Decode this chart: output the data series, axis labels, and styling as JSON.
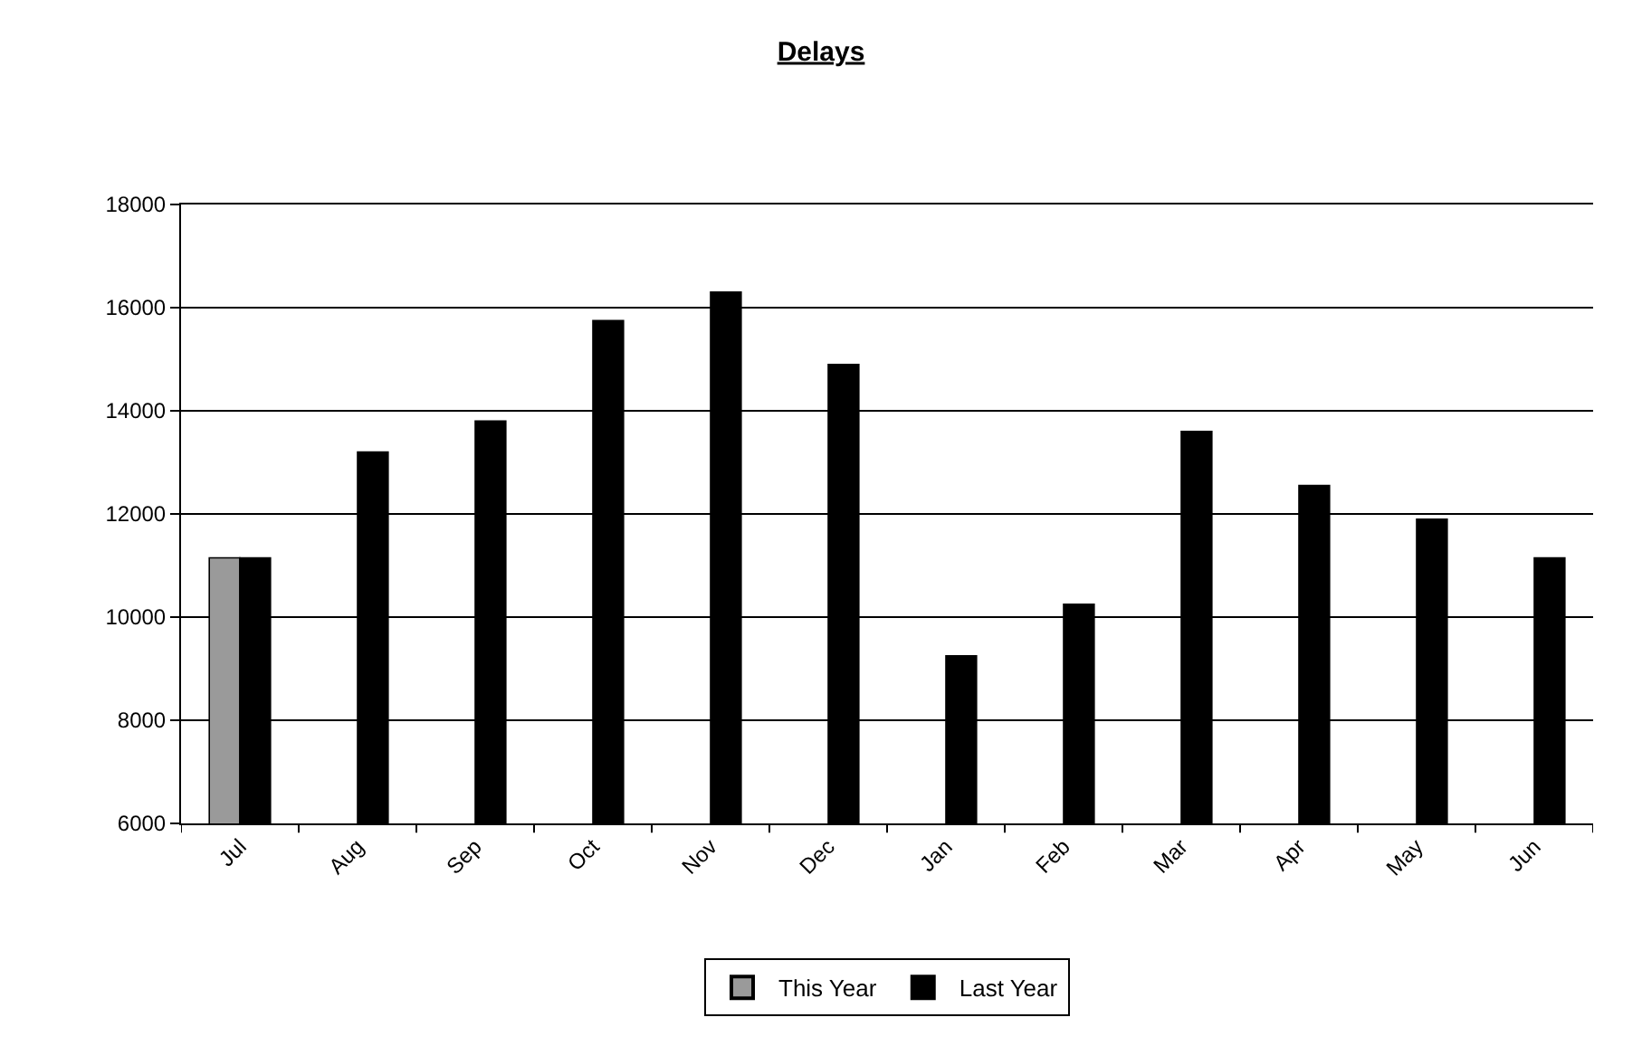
{
  "chart_data": {
    "type": "bar",
    "title": "Delays",
    "categories": [
      "Jul",
      "Aug",
      "Sep",
      "Oct",
      "Nov",
      "Dec",
      "Jan",
      "Feb",
      "Mar",
      "Apr",
      "May",
      "Jun"
    ],
    "series": [
      {
        "name": "This Year",
        "color": "#9a9a9a",
        "values": [
          11150,
          null,
          null,
          null,
          null,
          null,
          null,
          null,
          null,
          null,
          null,
          null
        ]
      },
      {
        "name": "Last Year",
        "color": "#000000",
        "values": [
          11150,
          13200,
          13800,
          15750,
          16300,
          14900,
          9250,
          10250,
          13600,
          12550,
          11900,
          11150
        ]
      }
    ],
    "ylim": [
      6000,
      18000
    ],
    "yticks": [
      6000,
      8000,
      10000,
      12000,
      14000,
      16000,
      18000
    ],
    "grid": "y",
    "legend": "bottom"
  }
}
